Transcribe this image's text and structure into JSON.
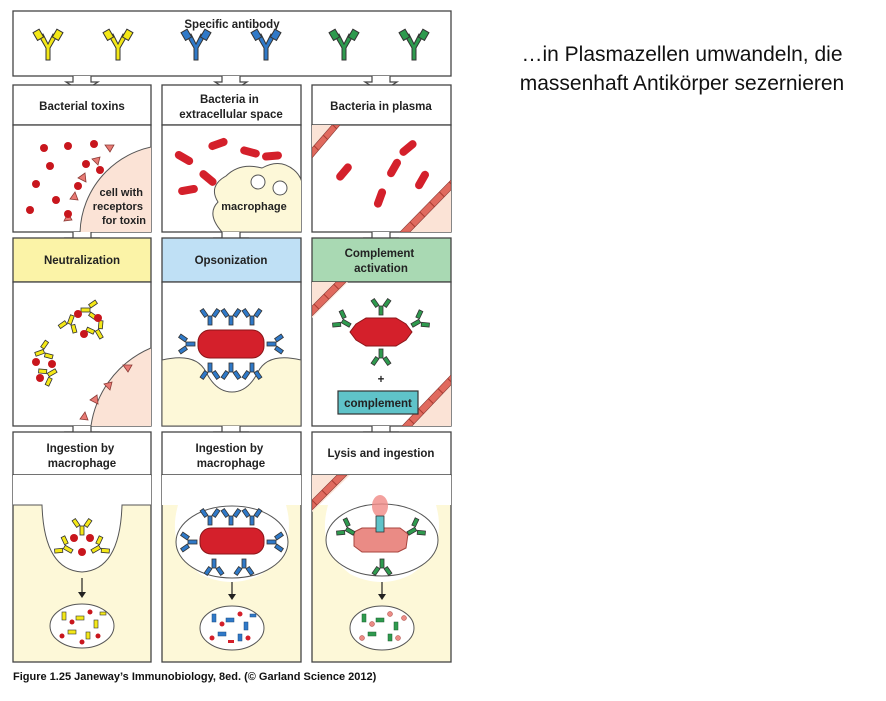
{
  "header": {
    "title": "Specific antibody"
  },
  "columns": [
    {
      "key": "col1",
      "target": "Bacterial toxins",
      "target_note": "cell with receptors for toxin",
      "mechanism": "Neutralization",
      "outcome": "Ingestion by macrophage",
      "color": "#f4e817"
    },
    {
      "key": "col2",
      "target": "Bacteria in extracellular space",
      "target_note": "macrophage",
      "mechanism": "Opsonization",
      "outcome": "Ingestion by macrophage",
      "color": "#2f79c8"
    },
    {
      "key": "col3",
      "target": "Bacteria in plasma",
      "target_note": "",
      "mechanism": "Complement activation",
      "complement_label": "complement",
      "plus": "+",
      "outcome": "Lysis and ingestion",
      "color": "#2e9a4e"
    }
  ],
  "labels": {
    "target1": [
      "Bacterial toxins"
    ],
    "target2": [
      "Bacteria in",
      "extracellular space"
    ],
    "target3": [
      "Bacteria in plasma"
    ],
    "note1": [
      "cell with",
      "receptors",
      "for toxin"
    ],
    "note2": [
      "macrophage"
    ],
    "mech1": [
      "Neutralization"
    ],
    "mech2": [
      "Opsonization"
    ],
    "mech3": [
      "Complement",
      "activation"
    ],
    "out1": [
      "Ingestion by",
      "macrophage"
    ],
    "out2": [
      "Ingestion by",
      "macrophage"
    ],
    "out3": [
      "Lysis and ingestion"
    ]
  },
  "side_text": {
    "line1": "…in Plasmazellen umwandeln, die",
    "line2": "massenhaft Antikörper sezernieren"
  },
  "caption": "Figure 1.25 Janeway’s Immunobiology, 8ed. (© Garland Science 2012)",
  "colors": {
    "antibody_yellow": "#f4e817",
    "antibody_blue": "#2f79c8",
    "antibody_green": "#2e9a4e",
    "bacteria_red": "#d4202b",
    "toxin_red": "#c8161d",
    "cell_peach": "#fbe3d6",
    "cell_cream": "#fdf8d8",
    "neutralization_bg": "#fbf3a7",
    "opsonization_bg": "#bfe0f5",
    "complement_bg": "#a9d9b3",
    "complement_box": "#5fc3c9"
  }
}
